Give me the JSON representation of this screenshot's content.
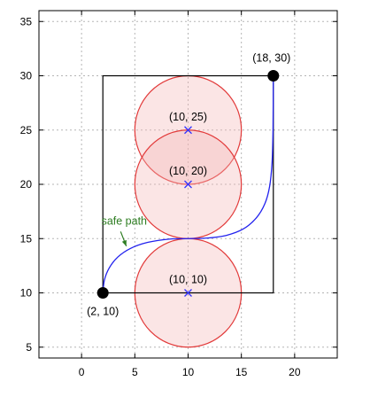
{
  "chart_data": {
    "type": "scatter",
    "title": "",
    "xlabel": "",
    "ylabel": "",
    "xlim": [
      -4,
      24
    ],
    "ylim": [
      4,
      36
    ],
    "grid": true,
    "x_ticks": [
      0,
      5,
      10,
      15,
      20
    ],
    "y_ticks": [
      5,
      10,
      15,
      20,
      25,
      30,
      35
    ],
    "rectangle": {
      "x": [
        2,
        18
      ],
      "y": [
        10,
        30
      ],
      "color": "#000000"
    },
    "circles": [
      {
        "center": [
          10,
          25
        ],
        "radius": 5,
        "label": "(10, 25)"
      },
      {
        "center": [
          10,
          20
        ],
        "radius": 5,
        "label": "(10, 20)"
      },
      {
        "center": [
          10,
          10
        ],
        "radius": 5,
        "label": "(10, 10)"
      }
    ],
    "circle_style": {
      "stroke": "#e23a3a",
      "fill": "#f4b4b4",
      "fill_opacity": 0.35,
      "center_marker_color": "#3333ff"
    },
    "endpoints": [
      {
        "point": [
          2,
          10
        ],
        "label": "(2, 10)"
      },
      {
        "point": [
          18,
          30
        ],
        "label": "(18, 30)"
      }
    ],
    "path": {
      "color": "#2222ee",
      "points": [
        [
          2,
          10
        ],
        [
          2.15,
          11.2
        ],
        [
          2.6,
          12.3
        ],
        [
          3.4,
          13.3
        ],
        [
          4.6,
          14.1
        ],
        [
          6.2,
          14.65
        ],
        [
          8.2,
          14.95
        ],
        [
          10,
          15
        ],
        [
          11.8,
          15.05
        ],
        [
          13.6,
          15.3
        ],
        [
          15.2,
          15.9
        ],
        [
          16.4,
          16.9
        ],
        [
          17.2,
          18.2
        ],
        [
          17.65,
          19.8
        ],
        [
          17.88,
          22
        ],
        [
          17.97,
          25
        ],
        [
          18,
          30
        ]
      ]
    },
    "annotation": {
      "text": "safe path",
      "color": "#2e7d22",
      "text_at": [
        4,
        16.3
      ],
      "arrow_to": [
        4.2,
        14.3
      ]
    }
  }
}
